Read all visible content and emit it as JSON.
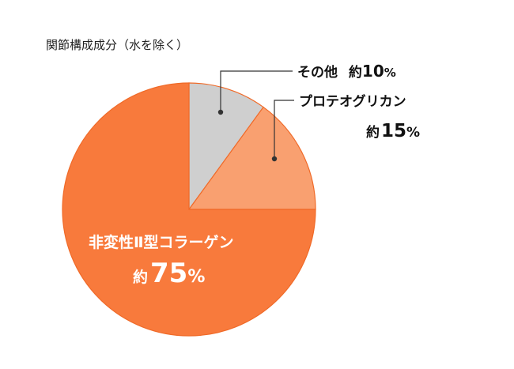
{
  "chart_data": {
    "type": "pie",
    "title": "関節構成成分（水を除く）",
    "start": "12 o'clock, clockwise",
    "slices": [
      {
        "name": "その他",
        "prefix": "約",
        "value": 10,
        "unit": "%",
        "color": "#cfcfcf"
      },
      {
        "name": "プロテオグリカン",
        "prefix": "約",
        "value": 15,
        "unit": "%",
        "color": "#f9a070"
      },
      {
        "name": "非変性Ⅱ型コラーゲン",
        "prefix": "約",
        "value": 75,
        "unit": "%",
        "color": "#f87a3c"
      }
    ]
  }
}
